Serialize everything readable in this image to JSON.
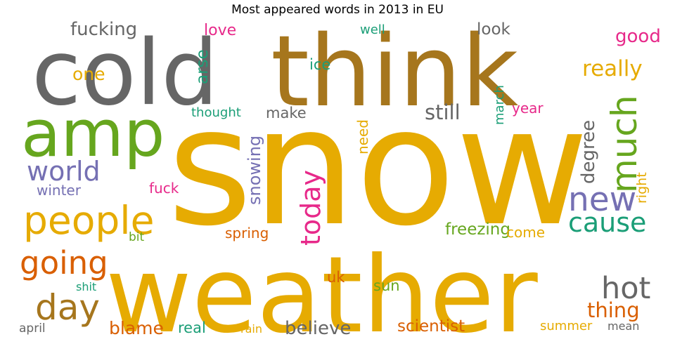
{
  "chart_data": {
    "type": "wordcloud",
    "title": "Most appeared words in 2013 in EU",
    "palette": "Dark2",
    "words": [
      {
        "text": "snow",
        "weight": 100,
        "color": "#e6ab02",
        "orientation": "horizontal"
      },
      {
        "text": "weather",
        "weight": 78,
        "color": "#e6ab02",
        "orientation": "horizontal"
      },
      {
        "text": "think",
        "weight": 62,
        "color": "#a6761d",
        "orientation": "horizontal"
      },
      {
        "text": "cold",
        "weight": 58,
        "color": "#666666",
        "orientation": "horizontal"
      },
      {
        "text": "amp",
        "weight": 42,
        "color": "#66a61e",
        "orientation": "horizontal"
      },
      {
        "text": "people",
        "weight": 22,
        "color": "#e6ab02",
        "orientation": "horizontal"
      },
      {
        "text": "much",
        "weight": 20,
        "color": "#66a61e",
        "orientation": "vertical"
      },
      {
        "text": "day",
        "weight": 19,
        "color": "#a6761d",
        "orientation": "horizontal"
      },
      {
        "text": "new",
        "weight": 18,
        "color": "#7570b3",
        "orientation": "horizontal"
      },
      {
        "text": "going",
        "weight": 16,
        "color": "#d95f02",
        "orientation": "horizontal"
      },
      {
        "text": "hot",
        "weight": 16,
        "color": "#666666",
        "orientation": "horizontal"
      },
      {
        "text": "world",
        "weight": 14,
        "color": "#7570b3",
        "orientation": "horizontal"
      },
      {
        "text": "cause",
        "weight": 14,
        "color": "#1b9e77",
        "orientation": "horizontal"
      },
      {
        "text": "today",
        "weight": 14,
        "color": "#e7298a",
        "orientation": "vertical"
      },
      {
        "text": "really",
        "weight": 11,
        "color": "#e6ab02",
        "orientation": "horizontal"
      },
      {
        "text": "thing",
        "weight": 11,
        "color": "#d95f02",
        "orientation": "horizontal"
      },
      {
        "text": "believe",
        "weight": 10,
        "color": "#666666",
        "orientation": "horizontal"
      },
      {
        "text": "still",
        "weight": 10,
        "color": "#666666",
        "orientation": "horizontal"
      },
      {
        "text": "arse",
        "weight": 9,
        "color": "#1b9e77",
        "orientation": "vertical"
      },
      {
        "text": "good",
        "weight": 9,
        "color": "#e7298a",
        "orientation": "horizontal"
      },
      {
        "text": "degree",
        "weight": 9,
        "color": "#666666",
        "orientation": "vertical"
      },
      {
        "text": "fucking",
        "weight": 9,
        "color": "#666666",
        "orientation": "horizontal"
      },
      {
        "text": "one",
        "weight": 9,
        "color": "#e6ab02",
        "orientation": "horizontal"
      },
      {
        "text": "snowing",
        "weight": 9,
        "color": "#7570b3",
        "orientation": "vertical"
      },
      {
        "text": "blame",
        "weight": 9,
        "color": "#d95f02",
        "orientation": "horizontal"
      },
      {
        "text": "freezing",
        "weight": 8,
        "color": "#66a61e",
        "orientation": "horizontal"
      },
      {
        "text": "scientist",
        "weight": 8,
        "color": "#d95f02",
        "orientation": "horizontal"
      },
      {
        "text": "look",
        "weight": 8,
        "color": "#666666",
        "orientation": "horizontal"
      },
      {
        "text": "love",
        "weight": 7,
        "color": "#e7298a",
        "orientation": "horizontal"
      },
      {
        "text": "ice",
        "weight": 7,
        "color": "#1b9e77",
        "orientation": "horizontal"
      },
      {
        "text": "make",
        "weight": 7,
        "color": "#666666",
        "orientation": "horizontal"
      },
      {
        "text": "need",
        "weight": 7,
        "color": "#e6ab02",
        "orientation": "vertical"
      },
      {
        "text": "year",
        "weight": 7,
        "color": "#e7298a",
        "orientation": "horizontal"
      },
      {
        "text": "march",
        "weight": 7,
        "color": "#1b9e77",
        "orientation": "vertical"
      },
      {
        "text": "winter",
        "weight": 7,
        "color": "#7570b3",
        "orientation": "horizontal"
      },
      {
        "text": "fuck",
        "weight": 7,
        "color": "#e7298a",
        "orientation": "horizontal"
      },
      {
        "text": "spring",
        "weight": 7,
        "color": "#d95f02",
        "orientation": "horizontal"
      },
      {
        "text": "come",
        "weight": 7,
        "color": "#e6ab02",
        "orientation": "horizontal"
      },
      {
        "text": "right",
        "weight": 7,
        "color": "#e6ab02",
        "orientation": "vertical"
      },
      {
        "text": "uk",
        "weight": 7,
        "color": "#d95f02",
        "orientation": "horizontal"
      },
      {
        "text": "sun",
        "weight": 7,
        "color": "#66a61e",
        "orientation": "horizontal"
      },
      {
        "text": "real",
        "weight": 7,
        "color": "#1b9e77",
        "orientation": "horizontal"
      },
      {
        "text": "summer",
        "weight": 6,
        "color": "#e6ab02",
        "orientation": "horizontal"
      },
      {
        "text": "thought",
        "weight": 6,
        "color": "#1b9e77",
        "orientation": "horizontal"
      },
      {
        "text": "well",
        "weight": 6,
        "color": "#1b9e77",
        "orientation": "horizontal"
      },
      {
        "text": "bit",
        "weight": 6,
        "color": "#66a61e",
        "orientation": "horizontal"
      },
      {
        "text": "shit",
        "weight": 6,
        "color": "#1b9e77",
        "orientation": "horizontal"
      },
      {
        "text": "april",
        "weight": 6,
        "color": "#666666",
        "orientation": "horizontal"
      },
      {
        "text": "rain",
        "weight": 6,
        "color": "#e6ab02",
        "orientation": "horizontal"
      },
      {
        "text": "mean",
        "weight": 6,
        "color": "#666666",
        "orientation": "horizontal"
      }
    ]
  }
}
